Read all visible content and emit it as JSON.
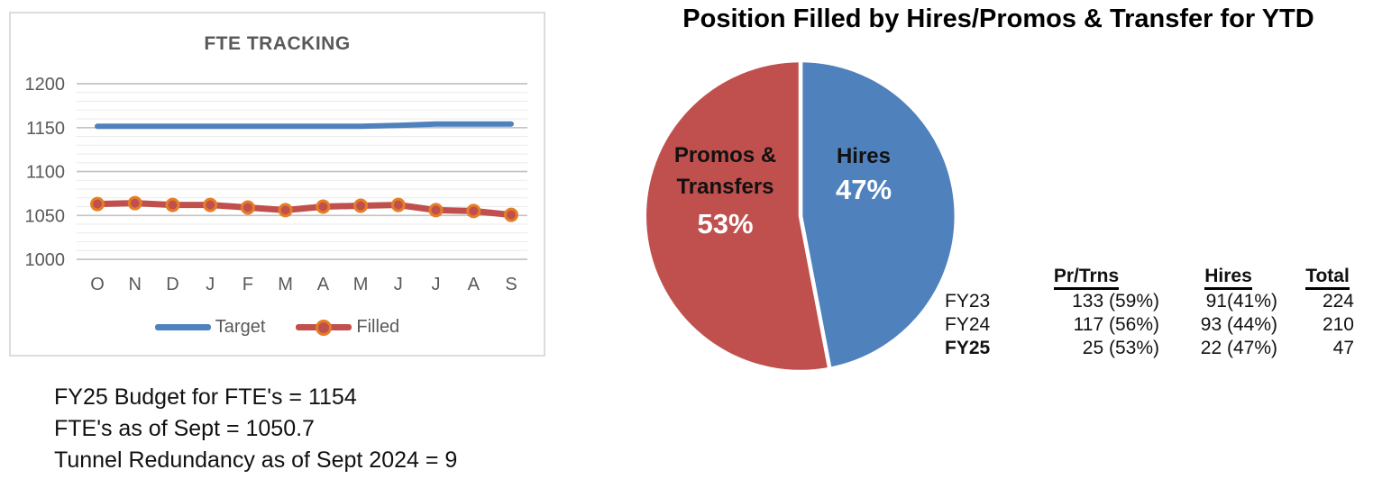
{
  "chart_data": [
    {
      "type": "line",
      "title": "FTE TRACKING",
      "x_labels": [
        "O",
        "N",
        "D",
        "J",
        "F",
        "M",
        "A",
        "M",
        "J",
        "J",
        "A",
        "S"
      ],
      "yticks": [
        1000,
        1050,
        1100,
        1150,
        1200
      ],
      "ylim": [
        1000,
        1200
      ],
      "minor_grid_step": 10,
      "grid": true,
      "legend_position": "bottom",
      "axis_color": "#595959",
      "series": [
        {
          "name": "Target",
          "color": "#4F81BD",
          "marker": false,
          "values": [
            1151.5,
            1151.5,
            1151.5,
            1151.5,
            1151.5,
            1151.5,
            1151.5,
            1151.5,
            1152.5,
            1154,
            1154,
            1154
          ]
        },
        {
          "name": "Filled",
          "color": "#C0504D",
          "marker": true,
          "marker_color": "#E57E25",
          "values": [
            1063,
            1064,
            1062,
            1062,
            1059,
            1056,
            1060,
            1061,
            1062,
            1056,
            1055,
            1050.7
          ]
        }
      ]
    },
    {
      "type": "pie",
      "title": "Position Filled by Hires/Promos & Transfer for YTD",
      "start_angle": "top",
      "direction": "clockwise",
      "slices": [
        {
          "label": "Hires",
          "label_line1": "Hires",
          "pct": 47,
          "pct_label": "47%",
          "value": 22,
          "color": "#4F81BD"
        },
        {
          "label": "Promos & Transfers",
          "label_line1": "Promos &",
          "label_line2": "Transfers",
          "pct": 53,
          "pct_label": "53%",
          "value": 25,
          "color": "#C0504D"
        }
      ]
    }
  ],
  "summary_table": {
    "headers": [
      "Pr/Trns",
      "Hires",
      "Total"
    ],
    "rows": [
      {
        "fy": "FY23",
        "pr_trns": "133 (59%)",
        "hires": "91(41%)",
        "total": "224",
        "bold": false
      },
      {
        "fy": "FY24",
        "pr_trns": "117 (56%)",
        "hires": "93 (44%)",
        "total": "210",
        "bold": false
      },
      {
        "fy": "FY25",
        "pr_trns": "25 (53%)",
        "hires": "22 (47%)",
        "total": "47",
        "bold": true
      }
    ]
  },
  "notes": {
    "lines": [
      "FY25 Budget for FTE's = 1154",
      "FTE's as of Sept = 1050.7",
      "Tunnel Redundancy as of Sept 2024 = 9"
    ]
  }
}
